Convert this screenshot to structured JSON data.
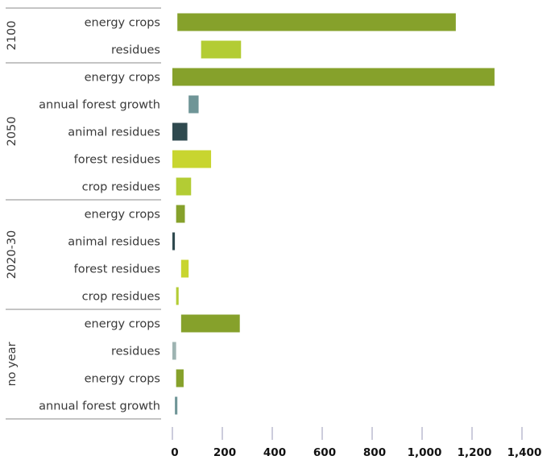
{
  "chart_data": {
    "type": "bar",
    "orientation": "horizontal",
    "stacked_offset": true,
    "xlim": [
      0,
      1400
    ],
    "x_ticks": [
      0,
      200,
      400,
      600,
      800,
      1000,
      1200,
      1400
    ],
    "x_tick_labels": [
      "0",
      "200",
      "400",
      "600",
      "800",
      "1,000",
      "1,200",
      "1,400"
    ],
    "grid": false,
    "groups": [
      {
        "label": "2100",
        "rows": [
          {
            "label": "energy crops",
            "start": 20,
            "end": 1135,
            "color": "#86a12b"
          },
          {
            "label": "residues",
            "start": 115,
            "end": 275,
            "color": "#b3cc34"
          }
        ]
      },
      {
        "label": "2050",
        "rows": [
          {
            "label": "energy crops",
            "start": 0,
            "end": 1290,
            "color": "#86a12b"
          },
          {
            "label": "annual forest growth",
            "start": 65,
            "end": 105,
            "color": "#6f9597"
          },
          {
            "label": "animal residues",
            "start": 0,
            "end": 60,
            "color": "#2f4a4f"
          },
          {
            "label": "forest residues",
            "start": 0,
            "end": 155,
            "color": "#c8d530"
          },
          {
            "label": "crop residues",
            "start": 15,
            "end": 75,
            "color": "#b3cc34"
          }
        ]
      },
      {
        "label": "2020-30",
        "rows": [
          {
            "label": "energy crops",
            "start": 15,
            "end": 50,
            "color": "#86a12b"
          },
          {
            "label": "animal residues",
            "start": 0,
            "end": 10,
            "color": "#2f4a4f"
          },
          {
            "label": "forest residues",
            "start": 35,
            "end": 65,
            "color": "#c8d530"
          },
          {
            "label": "crop residues",
            "start": 15,
            "end": 25,
            "color": "#b3cc34"
          }
        ]
      },
      {
        "label": "no year",
        "rows": [
          {
            "label": "energy crops",
            "start": 35,
            "end": 270,
            "color": "#86a12b"
          },
          {
            "label": "residues",
            "start": 0,
            "end": 15,
            "color": "#9eb4b2"
          },
          {
            "label": "energy crops",
            "start": 15,
            "end": 45,
            "color": "#86a12b"
          },
          {
            "label": "annual forest growth",
            "start": 10,
            "end": 20,
            "color": "#6f9597"
          }
        ]
      }
    ]
  }
}
